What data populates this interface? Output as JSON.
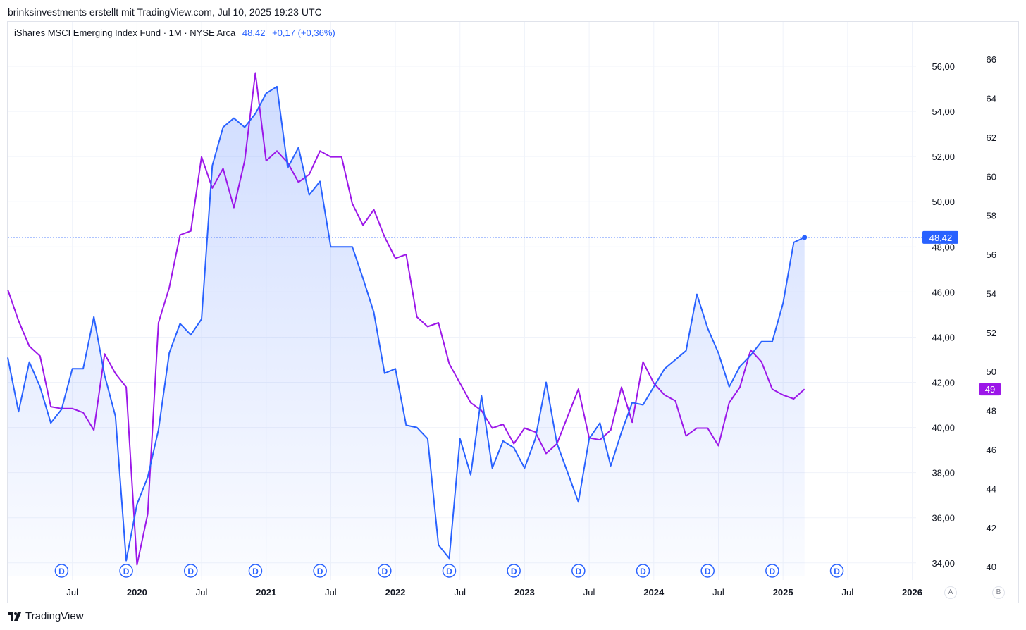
{
  "header": {
    "attribution": "brinksinvestments erstellt mit TradingView.com, Jul 10, 2025 19:23 UTC"
  },
  "legend": {
    "symbol": "iShares MSCI Emerging Index Fund · 1M · NYSE Arca",
    "last": "48,42",
    "change": "+0,17 (+0,36%)"
  },
  "footer": {
    "brand": "TradingView"
  },
  "scale_buttons": {
    "auto": "A",
    "log": "B"
  },
  "colors": {
    "primary": "#2962ff",
    "secondary": "#9c17e8",
    "grid": "#f0f3fa",
    "text": "#131722"
  },
  "chart_data": {
    "type": "line",
    "x_labels": [
      "Jul",
      "2020",
      "Jul",
      "2021",
      "Jul",
      "2022",
      "Jul",
      "2023",
      "Jul",
      "2024",
      "Jul",
      "2025",
      "Jul",
      "2026"
    ],
    "right_axis_ticks": [
      "56,00",
      "54,00",
      "52,00",
      "50,00",
      "48,00",
      "46,00",
      "44,00",
      "42,00",
      "40,00",
      "38,00",
      "36,00",
      "34,00"
    ],
    "far_right_axis_ticks": [
      "66",
      "64",
      "62",
      "60",
      "58",
      "56",
      "54",
      "52",
      "50",
      "48",
      "46",
      "44",
      "42",
      "40"
    ],
    "right_axis_range": [
      33.4,
      57.0
    ],
    "far_right_axis_range": [
      39.5,
      66.8
    ],
    "dividend_marker": "D",
    "dividend_dates": [
      "2019-06",
      "2019-12",
      "2020-06",
      "2020-12",
      "2021-06",
      "2021-12",
      "2022-06",
      "2022-12",
      "2023-06",
      "2023-12",
      "2024-06",
      "2024-12",
      "2025-06"
    ],
    "series": [
      {
        "axis": "right",
        "style": "area",
        "last_value_label": "48,42",
        "points": [
          [
            "2019-01",
            43.1
          ],
          [
            "2019-02",
            40.7
          ],
          [
            "2019-03",
            42.9
          ],
          [
            "2019-04",
            41.8
          ],
          [
            "2019-05",
            40.2
          ],
          [
            "2019-06",
            40.8
          ],
          [
            "2019-07",
            42.6
          ],
          [
            "2019-08",
            42.6
          ],
          [
            "2019-09",
            44.9
          ],
          [
            "2019-10",
            42.3
          ],
          [
            "2019-11",
            40.5
          ],
          [
            "2019-12",
            34.1
          ],
          [
            "2020-01",
            36.6
          ],
          [
            "2020-02",
            37.8
          ],
          [
            "2020-03",
            39.9
          ],
          [
            "2020-04",
            43.3
          ],
          [
            "2020-05",
            44.6
          ],
          [
            "2020-06",
            44.1
          ],
          [
            "2020-07",
            44.8
          ],
          [
            "2020-08",
            51.6
          ],
          [
            "2020-09",
            53.3
          ],
          [
            "2020-10",
            53.7
          ],
          [
            "2020-11",
            53.3
          ],
          [
            "2020-12",
            53.9
          ],
          [
            "2021-01",
            54.8
          ],
          [
            "2021-02",
            55.1
          ],
          [
            "2021-03",
            51.5
          ],
          [
            "2021-04",
            52.4
          ],
          [
            "2021-05",
            50.3
          ],
          [
            "2021-06",
            50.9
          ],
          [
            "2021-07",
            48.0
          ],
          [
            "2021-08",
            48.0
          ],
          [
            "2021-09",
            48.0
          ],
          [
            "2021-10",
            46.6
          ],
          [
            "2021-11",
            45.1
          ],
          [
            "2021-12",
            42.4
          ],
          [
            "2022-01",
            42.6
          ],
          [
            "2022-02",
            40.1
          ],
          [
            "2022-03",
            40.0
          ],
          [
            "2022-04",
            39.5
          ],
          [
            "2022-05",
            34.8
          ],
          [
            "2022-06",
            34.2
          ],
          [
            "2022-07",
            39.5
          ],
          [
            "2022-08",
            37.9
          ],
          [
            "2022-09",
            41.4
          ],
          [
            "2022-10",
            38.2
          ],
          [
            "2022-11",
            39.4
          ],
          [
            "2022-12",
            39.1
          ],
          [
            "2023-01",
            38.2
          ],
          [
            "2023-02",
            39.5
          ],
          [
            "2023-03",
            42.0
          ],
          [
            "2023-04",
            39.3
          ],
          [
            "2023-05",
            38.0
          ],
          [
            "2023-06",
            36.7
          ],
          [
            "2023-07",
            39.5
          ],
          [
            "2023-08",
            40.2
          ],
          [
            "2023-09",
            38.3
          ],
          [
            "2023-10",
            39.8
          ],
          [
            "2023-11",
            41.1
          ],
          [
            "2023-12",
            41.0
          ],
          [
            "2024-01",
            41.8
          ],
          [
            "2024-02",
            42.6
          ],
          [
            "2024-03",
            43.0
          ],
          [
            "2024-04",
            43.4
          ],
          [
            "2024-05",
            45.9
          ],
          [
            "2024-06",
            44.4
          ],
          [
            "2024-07",
            43.3
          ],
          [
            "2024-08",
            41.8
          ],
          [
            "2024-09",
            42.7
          ],
          [
            "2024-10",
            43.2
          ],
          [
            "2024-11",
            43.8
          ],
          [
            "2024-12",
            43.8
          ],
          [
            "2025-01",
            45.5
          ],
          [
            "2025-02",
            48.2
          ],
          [
            "2025-03",
            48.42
          ]
        ]
      },
      {
        "axis": "far_right",
        "style": "line",
        "last_value_label": "49",
        "points": [
          [
            "2019-01",
            54.2
          ],
          [
            "2019-02",
            52.6
          ],
          [
            "2019-03",
            51.3
          ],
          [
            "2019-04",
            50.8
          ],
          [
            "2019-05",
            48.2
          ],
          [
            "2019-06",
            48.1
          ],
          [
            "2019-07",
            48.1
          ],
          [
            "2019-08",
            47.9
          ],
          [
            "2019-09",
            47.0
          ],
          [
            "2019-10",
            50.9
          ],
          [
            "2019-11",
            49.9
          ],
          [
            "2019-12",
            49.2
          ],
          [
            "2020-01",
            40.1
          ],
          [
            "2020-02",
            42.7
          ],
          [
            "2020-03",
            52.5
          ],
          [
            "2020-04",
            54.3
          ],
          [
            "2020-05",
            57.0
          ],
          [
            "2020-06",
            57.2
          ],
          [
            "2020-07",
            61.0
          ],
          [
            "2020-08",
            59.4
          ],
          [
            "2020-09",
            60.4
          ],
          [
            "2020-10",
            58.4
          ],
          [
            "2020-11",
            60.8
          ],
          [
            "2020-12",
            65.3
          ],
          [
            "2021-01",
            60.8
          ],
          [
            "2021-02",
            61.3
          ],
          [
            "2021-03",
            60.7
          ],
          [
            "2021-04",
            59.7
          ],
          [
            "2021-05",
            60.1
          ],
          [
            "2021-06",
            61.3
          ],
          [
            "2021-07",
            61.0
          ],
          [
            "2021-08",
            61.0
          ],
          [
            "2021-09",
            58.6
          ],
          [
            "2021-10",
            57.5
          ],
          [
            "2021-11",
            58.3
          ],
          [
            "2021-12",
            56.9
          ],
          [
            "2022-01",
            55.8
          ],
          [
            "2022-02",
            56.0
          ],
          [
            "2022-03",
            52.8
          ],
          [
            "2022-04",
            52.3
          ],
          [
            "2022-05",
            52.5
          ],
          [
            "2022-06",
            50.4
          ],
          [
            "2022-07",
            49.4
          ],
          [
            "2022-08",
            48.4
          ],
          [
            "2022-09",
            48.0
          ],
          [
            "2022-10",
            47.1
          ],
          [
            "2022-11",
            47.3
          ],
          [
            "2022-12",
            46.3
          ],
          [
            "2023-01",
            47.1
          ],
          [
            "2023-02",
            46.9
          ],
          [
            "2023-03",
            45.8
          ],
          [
            "2023-04",
            46.3
          ],
          [
            "2023-05",
            47.7
          ],
          [
            "2023-06",
            49.1
          ],
          [
            "2023-07",
            46.6
          ],
          [
            "2023-08",
            46.5
          ],
          [
            "2023-09",
            47.0
          ],
          [
            "2023-10",
            49.2
          ],
          [
            "2023-11",
            47.4
          ],
          [
            "2023-12",
            50.5
          ],
          [
            "2024-01",
            49.4
          ],
          [
            "2024-02",
            48.8
          ],
          [
            "2024-03",
            48.5
          ],
          [
            "2024-04",
            46.7
          ],
          [
            "2024-05",
            47.1
          ],
          [
            "2024-06",
            47.1
          ],
          [
            "2024-07",
            46.2
          ],
          [
            "2024-08",
            48.4
          ],
          [
            "2024-09",
            49.2
          ],
          [
            "2024-10",
            51.1
          ],
          [
            "2024-11",
            50.5
          ],
          [
            "2024-12",
            49.1
          ],
          [
            "2025-01",
            48.8
          ],
          [
            "2025-02",
            48.6
          ],
          [
            "2025-03",
            49.1
          ]
        ]
      }
    ]
  }
}
